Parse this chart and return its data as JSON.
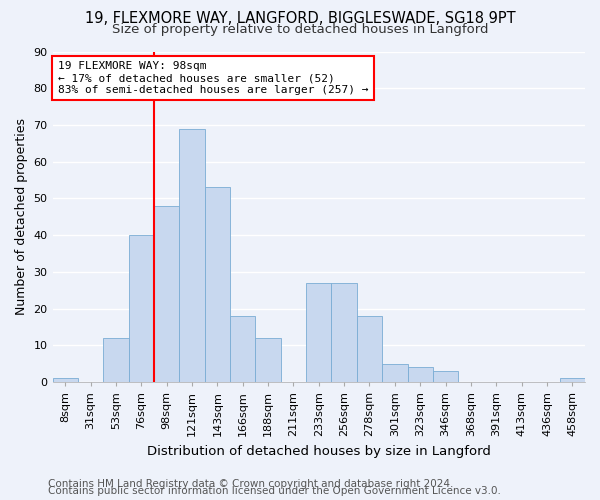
{
  "title1": "19, FLEXMORE WAY, LANGFORD, BIGGLESWADE, SG18 9PT",
  "title2": "Size of property relative to detached houses in Langford",
  "xlabel": "Distribution of detached houses by size in Langford",
  "ylabel": "Number of detached properties",
  "categories": [
    "8sqm",
    "31sqm",
    "53sqm",
    "76sqm",
    "98sqm",
    "121sqm",
    "143sqm",
    "166sqm",
    "188sqm",
    "211sqm",
    "233sqm",
    "256sqm",
    "278sqm",
    "301sqm",
    "323sqm",
    "346sqm",
    "368sqm",
    "391sqm",
    "413sqm",
    "436sqm",
    "458sqm"
  ],
  "bar_values": [
    1,
    0,
    12,
    40,
    48,
    69,
    53,
    18,
    12,
    0,
    27,
    27,
    18,
    5,
    4,
    3,
    0,
    0,
    0,
    0,
    1
  ],
  "bar_color": "#c8d8ef",
  "bar_edge_color": "#7aacd4",
  "annotation_text": "19 FLEXMORE WAY: 98sqm\n← 17% of detached houses are smaller (52)\n83% of semi-detached houses are larger (257) →",
  "annotation_box_color": "white",
  "annotation_box_edge": "red",
  "vline_color": "red",
  "vline_index": 3.5,
  "ylim": [
    0,
    90
  ],
  "yticks": [
    0,
    10,
    20,
    30,
    40,
    50,
    60,
    70,
    80,
    90
  ],
  "footer1": "Contains HM Land Registry data © Crown copyright and database right 2024.",
  "footer2": "Contains public sector information licensed under the Open Government Licence v3.0.",
  "bg_color": "#eef2fa",
  "plot_bg_color": "#eef2fa",
  "grid_color": "white",
  "title1_fontsize": 10.5,
  "title2_fontsize": 9.5,
  "xlabel_fontsize": 9.5,
  "ylabel_fontsize": 9,
  "tick_fontsize": 8,
  "annotation_fontsize": 8,
  "footer_fontsize": 7.5
}
